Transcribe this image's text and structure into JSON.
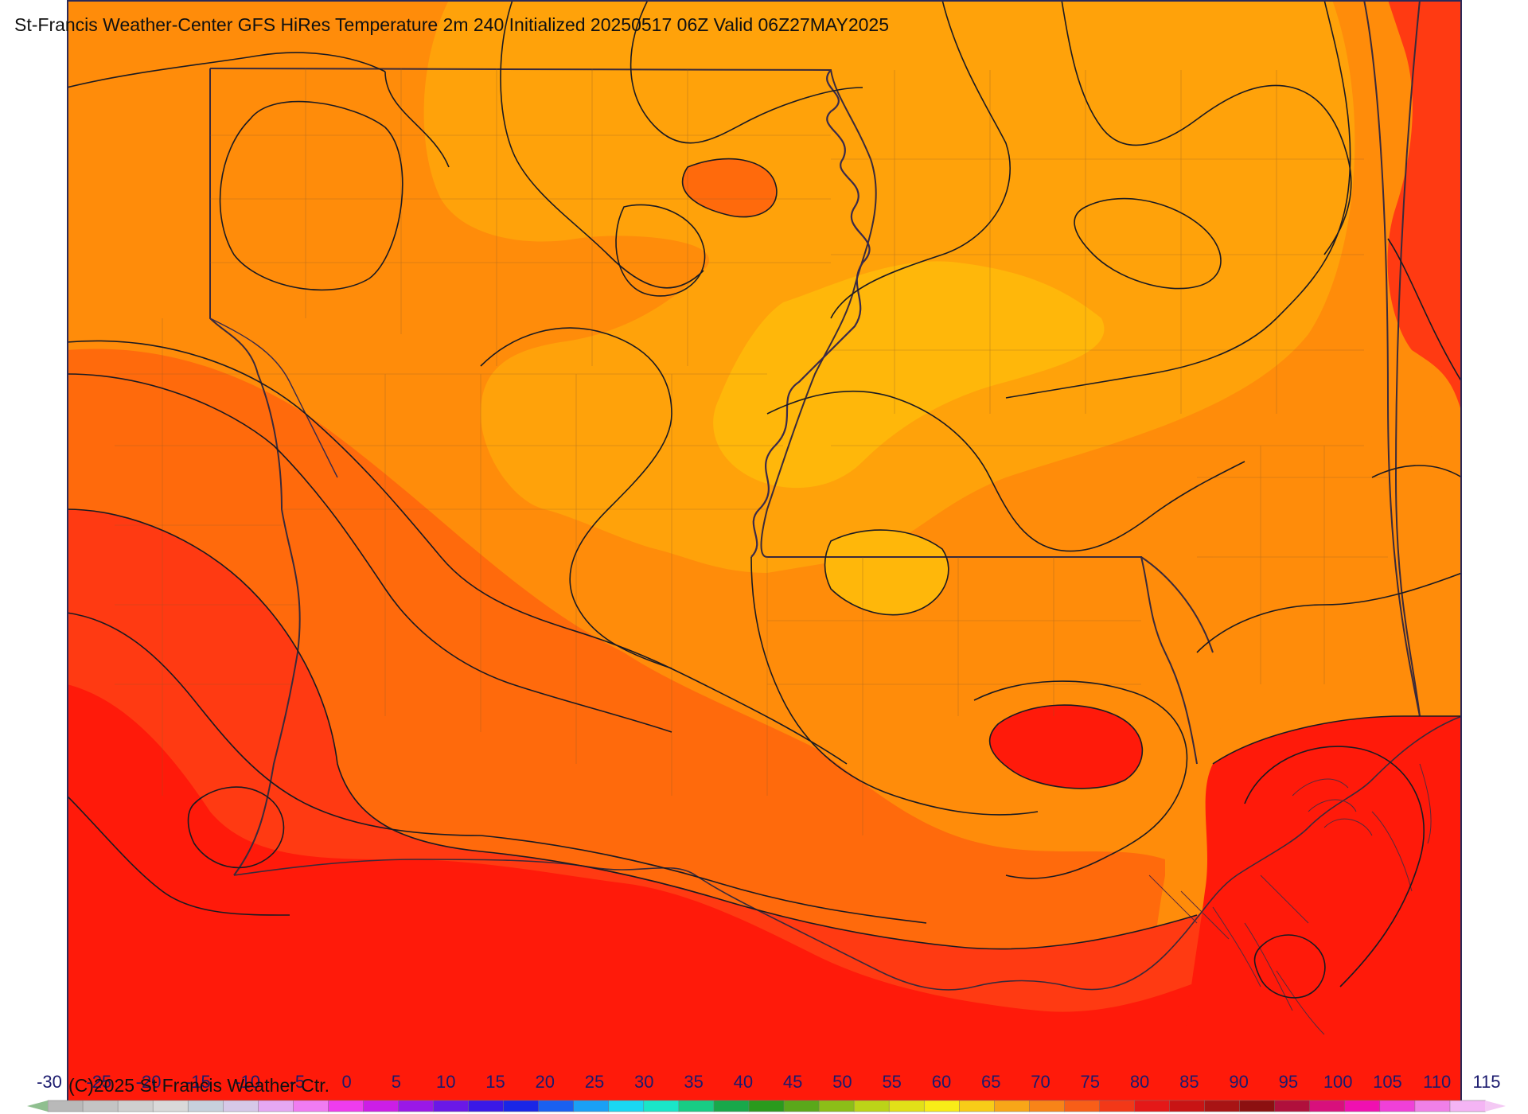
{
  "title": "St-Francis Weather-Center GFS HiRes Temperature 2m  240 Initialized 20250517 06Z Valid 06Z27MAY2025",
  "copyright": "(C)2025 St Francis Weather Ctr.",
  "colorbar": {
    "ticks": [
      "-30",
      "-25",
      "-20",
      "-15",
      "-10",
      "-5",
      "0",
      "5",
      "10",
      "15",
      "20",
      "25",
      "30",
      "35",
      "40",
      "45",
      "50",
      "55",
      "60",
      "65",
      "70",
      "75",
      "80",
      "85",
      "90",
      "95",
      "100",
      "105",
      "110",
      "115"
    ],
    "colors": [
      "#b9b9b9",
      "#c4c4c4",
      "#cfcfcf",
      "#d9d9d9",
      "#c7d0dc",
      "#d6c8e8",
      "#e5a8f2",
      "#f07cf2",
      "#ee3cee",
      "#cc1ee6",
      "#9a18e6",
      "#6a18e6",
      "#3a18e6",
      "#1a26e6",
      "#1a60f0",
      "#1aa0f5",
      "#1ad7f2",
      "#1ae6c8",
      "#18cc84",
      "#18a84a",
      "#2a9a1c",
      "#5aa81a",
      "#8cbe18",
      "#bcd418",
      "#e2e018",
      "#f8ec18",
      "#f8cc18",
      "#f8a618",
      "#f88418",
      "#f85e18",
      "#f23818",
      "#e41818",
      "#c81414",
      "#a81414",
      "#8c1010",
      "#b0103c",
      "#d8107c",
      "#f010b0",
      "#f040d8",
      "#f080e8",
      "#f4b4f4"
    ],
    "left_end_color": "#8fbf8f",
    "right_end_color": "#f4c8f4"
  },
  "legend_palette": {
    "t_above_90": "#ff1a0a",
    "t_85": "#ff3a12",
    "t_80": "#ff6a0c",
    "t_75": "#ff8c0a",
    "t_70": "#ffa20a",
    "t_65": "#ffb70a"
  }
}
